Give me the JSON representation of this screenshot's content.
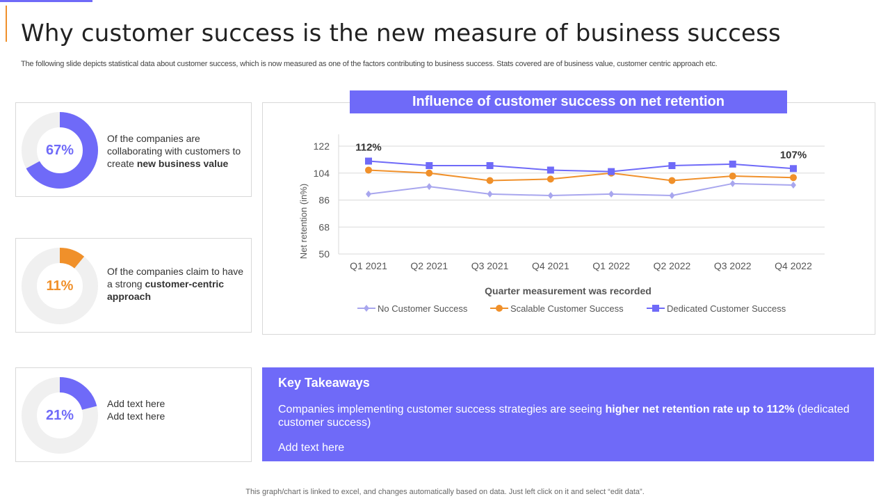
{
  "header": {
    "title": "Why customer success is the new measure of business success",
    "subtitle": "The following slide depicts statistical data about customer success, which is now measured as one of the factors contributing to business success. Stats covered are of business value, customer centric approach etc."
  },
  "colors": {
    "accent": "#6f6af8",
    "orange": "#f0902a",
    "light": "#a8a6ee",
    "track": "#f0f0f0"
  },
  "cards": [
    {
      "value": 67,
      "label": "67%",
      "color": "#6f6af8",
      "text_pre": "Of the companies are collaborating with customers to create ",
      "text_bold": "new business value"
    },
    {
      "value": 11,
      "label": "11%",
      "color": "#f0902a",
      "text_pre": "Of the companies claim to have a strong ",
      "text_bold": "customer-centric approach"
    },
    {
      "value": 21,
      "label": "21%",
      "color": "#6f6af8",
      "line1": "Add text here",
      "line2": "Add text here"
    }
  ],
  "chart_data": {
    "type": "line",
    "title": "Influence of customer success on net retention",
    "xlabel": "Quarter measurement was recorded",
    "ylabel": "Net retention (in%)",
    "categories": [
      "Q1 2021",
      "Q2 2021",
      "Q3 2021",
      "Q4 2021",
      "Q1 2022",
      "Q2 2022",
      "Q3 2022",
      "Q4 2022"
    ],
    "yticks": [
      50,
      68,
      86,
      104,
      122
    ],
    "ylim": [
      50,
      122
    ],
    "grid": true,
    "legend": "bottom",
    "series": [
      {
        "name": "No Customer Success",
        "color": "#a8a6ee",
        "marker": "diamond",
        "values": [
          90,
          95,
          90,
          89,
          90,
          89,
          97,
          96
        ]
      },
      {
        "name": "Scalable Customer Success",
        "color": "#f0902a",
        "marker": "circle",
        "values": [
          106,
          104,
          99,
          100,
          104,
          99,
          102,
          101
        ]
      },
      {
        "name": "Dedicated Customer Success",
        "color": "#6f6af8",
        "marker": "square",
        "values": [
          112,
          109,
          109,
          106,
          105,
          109,
          110,
          107
        ]
      }
    ],
    "annotations": [
      {
        "series": 2,
        "index": 0,
        "text": "112%"
      },
      {
        "series": 2,
        "index": 7,
        "text": "107%"
      }
    ]
  },
  "takeaways": {
    "title": "Key Takeaways",
    "text_pre": "Companies implementing customer success strategies are seeing ",
    "text_bold": "higher net retention rate up to 112%",
    "text_post": " (dedicated customer success)",
    "extra": "Add text here"
  },
  "footer": "This graph/chart is linked to excel, and changes automatically based on data. Just left click on it and select “edit data”."
}
